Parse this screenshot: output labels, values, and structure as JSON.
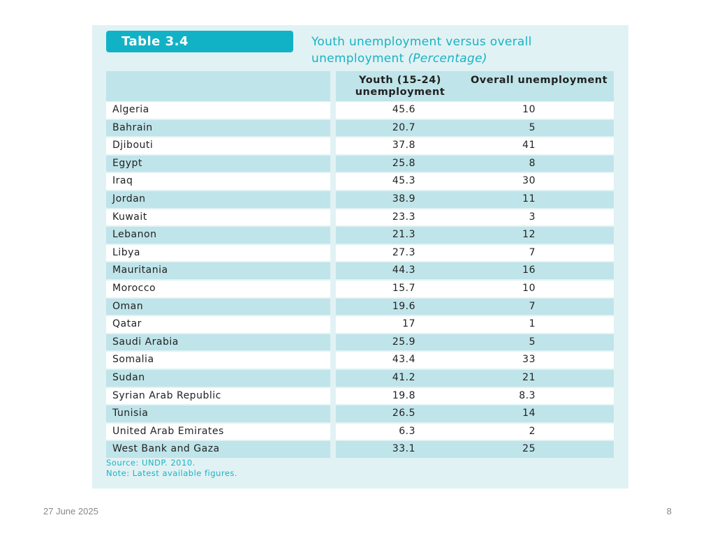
{
  "table": {
    "label": "Table 3.4",
    "caption_main": "Youth unemployment versus overall unemployment",
    "caption_italic": "(Percentage)",
    "columns": [
      "",
      "Youth (15-24) unemployment",
      "Overall unemployment"
    ],
    "rows": [
      [
        "Algeria",
        "45.6",
        "10"
      ],
      [
        "Bahrain",
        "20.7",
        "5"
      ],
      [
        "Djibouti",
        "37.8",
        "41"
      ],
      [
        "Egypt",
        "25.8",
        "8"
      ],
      [
        "Iraq",
        "45.3",
        "30"
      ],
      [
        "Jordan",
        "38.9",
        "11"
      ],
      [
        "Kuwait",
        "23.3",
        "3"
      ],
      [
        "Lebanon",
        "21.3",
        "12"
      ],
      [
        "Libya",
        "27.3",
        "7"
      ],
      [
        "Mauritania",
        "44.3",
        "16"
      ],
      [
        "Morocco",
        "15.7",
        "10"
      ],
      [
        "Oman",
        "19.6",
        "7"
      ],
      [
        "Qatar",
        "17",
        "1"
      ],
      [
        "Saudi Arabia",
        "25.9",
        "5"
      ],
      [
        "Somalia",
        "43.4",
        "33"
      ],
      [
        "Sudan",
        "41.2",
        "21"
      ],
      [
        "Syrian Arab Republic",
        "19.8",
        "8.3"
      ],
      [
        "Tunisia",
        "26.5",
        "14"
      ],
      [
        "United Arab Emirates",
        "6.3",
        "2"
      ],
      [
        "West Bank and Gaza",
        "33.1",
        "25"
      ]
    ],
    "source": "Source: UNDP. 2010.",
    "note": "Note: Latest available figures."
  },
  "footer": {
    "date": "27 June 2025",
    "page": "8"
  },
  "colors": {
    "accent": "#12b2c6",
    "panel_bg": "#e1f2f4",
    "row_alt": "#bfe4e9"
  }
}
